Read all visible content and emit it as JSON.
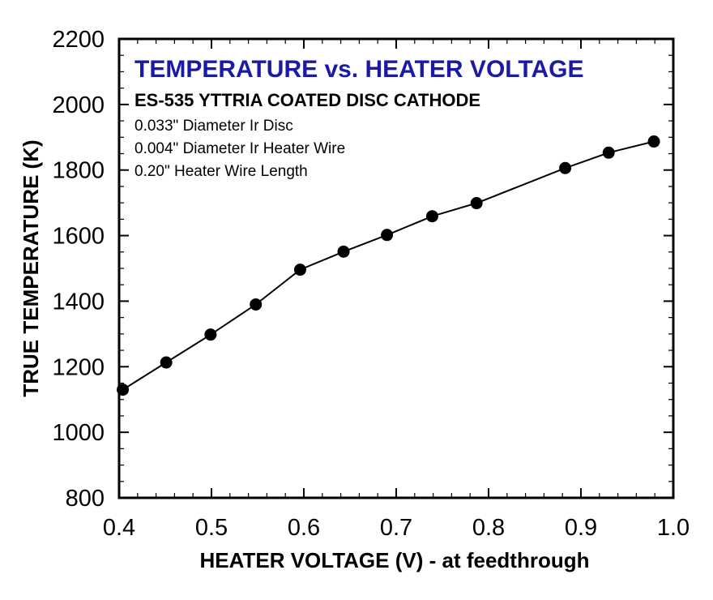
{
  "colors": {
    "title": "#1a1aa6",
    "ink": "#000000",
    "background": "#ffffff"
  },
  "chart_data": {
    "type": "line",
    "title": "TEMPERATURE vs. HEATER VOLTAGE",
    "subtitle": "ES-535 YTTRIA COATED DISC CATHODE",
    "notes": [
      "0.033\" Diameter Ir Disc",
      "0.004\" Diameter Ir Heater Wire",
      "0.20\" Heater Wire Length"
    ],
    "xlabel": "HEATER VOLTAGE (V) - at feedthrough",
    "ylabel": "TRUE TEMPERATURE (K)",
    "xlim": [
      0.4,
      1.0
    ],
    "ylim": [
      800,
      2200
    ],
    "xticks": [
      "0.4",
      "0.5",
      "0.6",
      "0.7",
      "0.8",
      "0.9",
      "1.0"
    ],
    "yticks": [
      "800",
      "1000",
      "1200",
      "1400",
      "1600",
      "1800",
      "2000",
      "2200"
    ],
    "grid": false,
    "series": [
      {
        "x": [
          0.404,
          0.451,
          0.499,
          0.548,
          0.596,
          0.643,
          0.69,
          0.739,
          0.787,
          0.883,
          0.93,
          0.979
        ],
        "y": [
          1130,
          1213,
          1298,
          1390,
          1496,
          1551,
          1602,
          1659,
          1699,
          1806,
          1853,
          1887
        ]
      }
    ]
  }
}
